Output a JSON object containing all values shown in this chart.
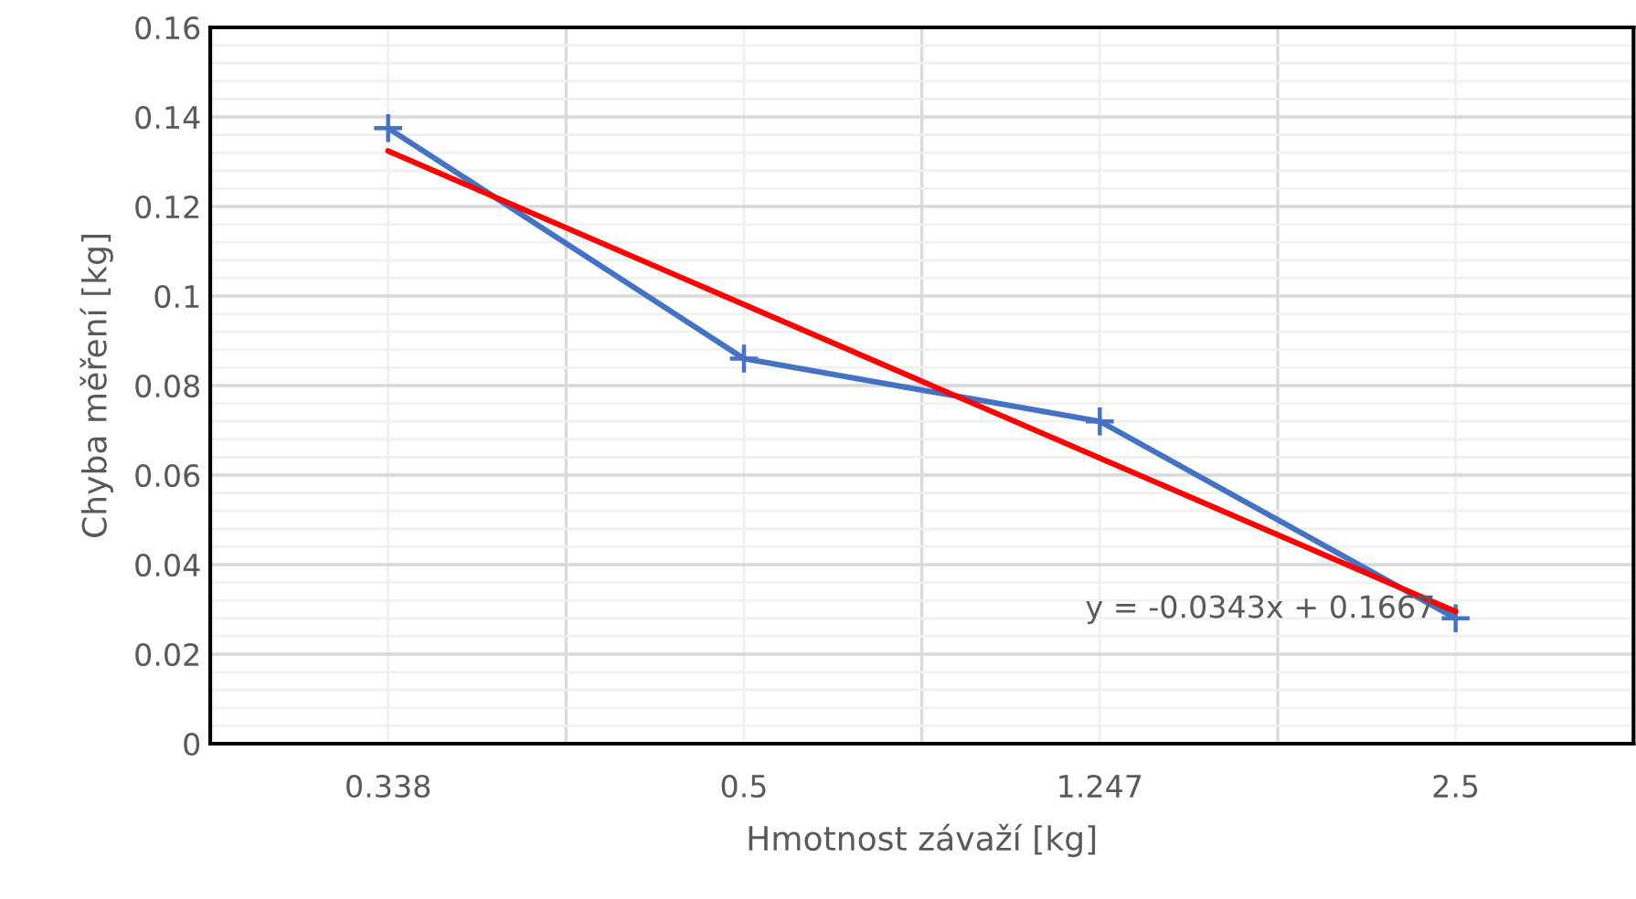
{
  "chart_data": {
    "type": "line",
    "xlabel": "Hmotnost závaží [kg]",
    "ylabel": "Chyba měření [kg]",
    "categories": [
      "0.338",
      "0.5",
      "1.247",
      "2.5"
    ],
    "series": [
      {
        "color": "#4472c4",
        "values": [
          0.1375,
          0.086,
          0.072,
          0.028
        ],
        "marker": "cross"
      },
      {
        "type": "line",
        "color": "#ff0000",
        "x": [
          "0.338",
          "2.5"
        ],
        "values": [
          0.1324,
          0.0295
        ],
        "marker": "none"
      }
    ],
    "ylim": [
      0,
      0.16
    ],
    "yticks": [
      0,
      0.02,
      0.04,
      0.06,
      0.08,
      {
        "value": 0.1,
        "label": "0.1"
      },
      0.12,
      0.14,
      0.16
    ],
    "grid": true,
    "legend": false,
    "annotations": [
      {
        "text": "y = -0.0343x + 0.1667",
        "x": "2.5",
        "y": 0.03
      }
    ]
  }
}
